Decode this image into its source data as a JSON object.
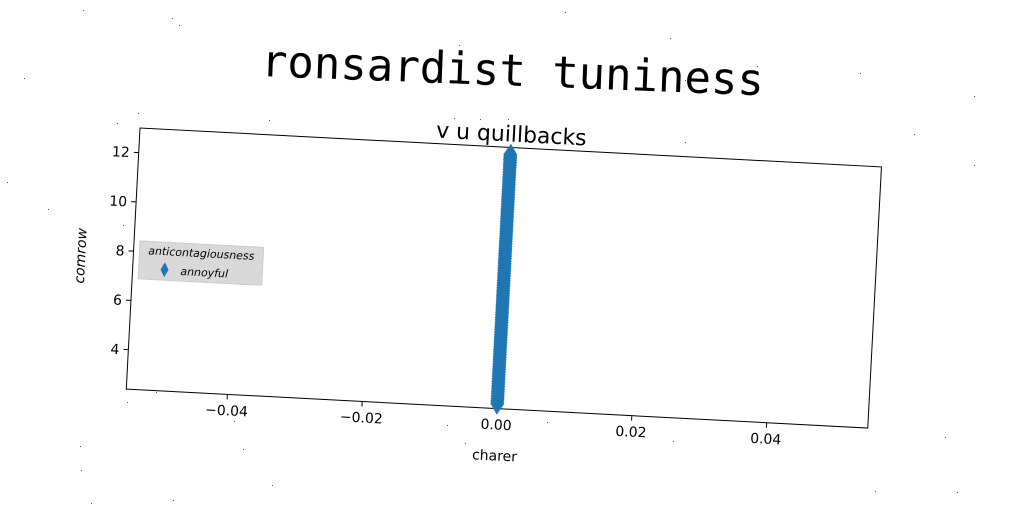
{
  "figure": {
    "suptitle": "ronsardist tuniness"
  },
  "chart_data": {
    "type": "scatter",
    "title": "v u quillbacks",
    "xlabel": "charer",
    "ylabel": "comrow",
    "xlim": [
      -0.055,
      0.055
    ],
    "ylim": [
      2.4,
      13.0
    ],
    "xticks": [
      -0.04,
      -0.02,
      0.0,
      0.02,
      0.04
    ],
    "xtick_labels": [
      "−0.04",
      "−0.02",
      "0.00",
      "0.02",
      "0.04"
    ],
    "yticks": [
      4,
      6,
      8,
      10,
      12
    ],
    "ytick_labels": [
      "4",
      "6",
      "8",
      "10",
      "12"
    ],
    "grid": false,
    "legend": {
      "title": "anticontagiousness",
      "placement": "center-left",
      "entries": [
        "annoyful"
      ]
    },
    "series": [
      {
        "name": "annoyful",
        "marker": "thin_diamond",
        "color": "#1f77b4",
        "x": [
          0,
          0,
          0,
          0,
          0,
          0,
          0,
          0,
          0,
          0,
          0,
          0,
          0,
          0,
          0,
          0,
          0,
          0,
          0,
          0,
          0,
          0,
          0,
          0,
          0,
          0,
          0,
          0,
          0,
          0,
          0,
          0,
          0,
          0,
          0,
          0,
          0,
          0,
          0,
          0,
          0,
          0,
          0,
          0,
          0,
          0,
          0,
          0,
          0,
          0,
          0,
          0,
          0,
          0,
          0,
          0,
          0,
          0,
          0,
          0,
          0,
          0,
          0,
          0,
          0,
          0,
          0,
          0,
          0,
          0,
          0,
          0,
          0,
          0,
          0,
          0,
          0,
          0,
          0,
          0,
          0,
          0,
          0,
          0,
          0,
          0,
          0,
          0,
          0,
          0,
          0,
          0,
          0,
          0,
          0,
          0,
          0,
          0,
          0,
          0,
          0,
          0,
          0,
          0,
          0,
          0,
          0
        ],
        "y": [
          2.6,
          2.7,
          2.8,
          2.9,
          3.0,
          3.1,
          3.2,
          3.3,
          3.4,
          3.5,
          3.6,
          3.7,
          3.8,
          3.9,
          4.0,
          4.1,
          4.2,
          4.3,
          4.4,
          4.5,
          4.6,
          4.7,
          4.8,
          4.9,
          5.0,
          5.1,
          5.2,
          5.3,
          5.4,
          5.5,
          5.6,
          5.7,
          5.8,
          5.9,
          6.0,
          6.1,
          6.2,
          6.3,
          6.4,
          6.5,
          6.6,
          6.7,
          6.8,
          6.9,
          7.0,
          7.1,
          7.2,
          7.3,
          7.4,
          7.5,
          7.6,
          7.7,
          7.8,
          7.9,
          8.0,
          8.1,
          8.2,
          8.3,
          8.4,
          8.5,
          8.6,
          8.7,
          8.8,
          8.9,
          9.0,
          9.1,
          9.2,
          9.3,
          9.4,
          9.5,
          9.6,
          9.7,
          9.8,
          9.9,
          10.0,
          10.1,
          10.2,
          10.3,
          10.4,
          10.5,
          10.6,
          10.7,
          10.8,
          10.9,
          11.0,
          11.1,
          11.2,
          11.3,
          11.4,
          11.5,
          11.6,
          11.7,
          11.8,
          11.9,
          12.0,
          12.1,
          12.2,
          12.3,
          12.4,
          12.5,
          12.6,
          12.7,
          12.7,
          12.6,
          12.5,
          12.4,
          12.3
        ]
      }
    ]
  }
}
